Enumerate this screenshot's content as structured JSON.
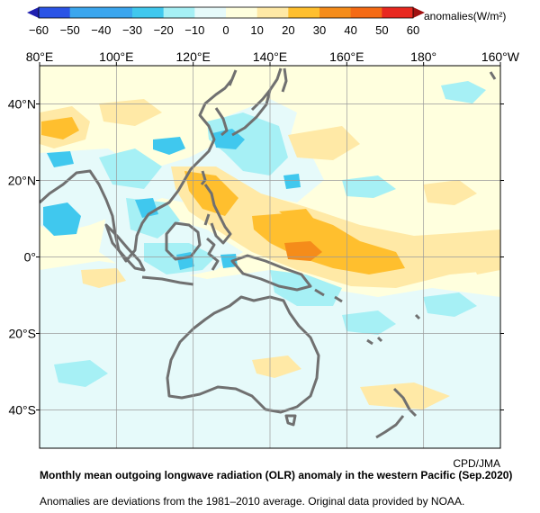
{
  "colorbar": {
    "unit_label": "anomalies(W/m²)",
    "tick_labels": [
      "−60",
      "−50",
      "−40",
      "−30",
      "−20",
      "−10",
      "0",
      "10",
      "20",
      "30",
      "40",
      "50",
      "60"
    ],
    "bins": [
      {
        "range": [
          -60,
          -50
        ],
        "color": "#2b54e6"
      },
      {
        "range": [
          -50,
          -40
        ],
        "color": "#3ba6ee"
      },
      {
        "range": [
          -40,
          -30
        ],
        "color": "#3ba6ee"
      },
      {
        "range": [
          -30,
          -20
        ],
        "color": "#40c8ee"
      },
      {
        "range": [
          -20,
          -10
        ],
        "color": "#a6f0f5"
      },
      {
        "range": [
          -10,
          0
        ],
        "color": "#e6fafa"
      },
      {
        "range": [
          0,
          10
        ],
        "color": "#ffffde"
      },
      {
        "range": [
          10,
          20
        ],
        "color": "#ffe9a6"
      },
      {
        "range": [
          20,
          30
        ],
        "color": "#ffbf2e"
      },
      {
        "range": [
          30,
          40
        ],
        "color": "#f58c1a"
      },
      {
        "range": [
          40,
          50
        ],
        "color": "#f56a14"
      },
      {
        "range": [
          50,
          60
        ],
        "color": "#e8281f"
      }
    ],
    "under_color": "#2020b0",
    "over_color": "#a01010"
  },
  "map": {
    "lon_labels": [
      "80°E",
      "100°E",
      "120°E",
      "140°E",
      "160°E",
      "180°",
      "160°W"
    ],
    "lat_labels": [
      "40°N",
      "20°N",
      "0°",
      "20°S",
      "40°S"
    ],
    "lon_range": [
      80,
      200
    ],
    "lat_range": [
      -50,
      50
    ],
    "background_color": "#ffffde",
    "grid": true,
    "coastline_color": "#707070"
  },
  "credit": "CPD/JMA",
  "caption": {
    "title": "Monthly mean outgoing longwave radiation (OLR) anomaly in the western Pacific (Sep.2020)",
    "note": "Anomalies are deviations from the 1981–2010 average. Original data provided by NOAA."
  }
}
